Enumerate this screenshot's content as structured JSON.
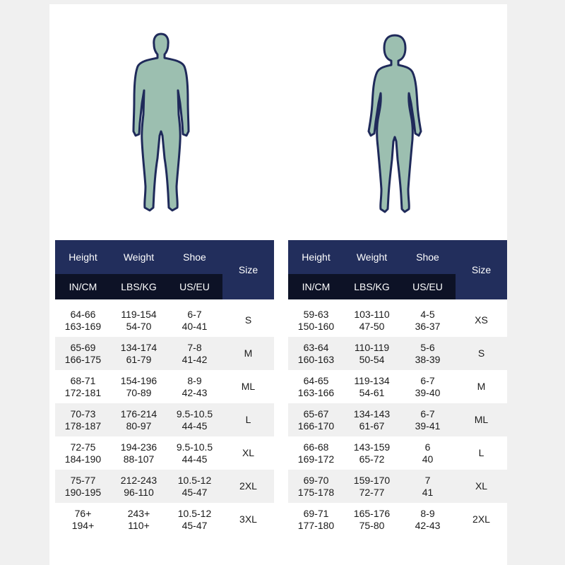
{
  "colors": {
    "header_navy": "#222e5c",
    "subheader_dark": "#0d1226",
    "figure_fill": "#9cbfb0",
    "figure_outline": "#1f2a5a",
    "row_alt": "#f0f0f0"
  },
  "headers": {
    "height": "Height",
    "weight": "Weight",
    "shoe": "Shoe",
    "size": "Size",
    "height_unit": "IN/CM",
    "weight_unit": "LBS/KG",
    "shoe_unit": "US/EU"
  },
  "men": {
    "figure": "male-body-silhouette",
    "rows": [
      {
        "height": [
          "64-66",
          "163-169"
        ],
        "weight": [
          "119-154",
          "54-70"
        ],
        "shoe": [
          "6-7",
          "40-41"
        ],
        "size": "S"
      },
      {
        "height": [
          "65-69",
          "166-175"
        ],
        "weight": [
          "134-174",
          "61-79"
        ],
        "shoe": [
          "7-8",
          "41-42"
        ],
        "size": "M"
      },
      {
        "height": [
          "68-71",
          "172-181"
        ],
        "weight": [
          "154-196",
          "70-89"
        ],
        "shoe": [
          "8-9",
          "42-43"
        ],
        "size": "ML"
      },
      {
        "height": [
          "70-73",
          "178-187"
        ],
        "weight": [
          "176-214",
          "80-97"
        ],
        "shoe": [
          "9.5-10.5",
          "44-45"
        ],
        "size": "L"
      },
      {
        "height": [
          "72-75",
          "184-190"
        ],
        "weight": [
          "194-236",
          "88-107"
        ],
        "shoe": [
          "9.5-10.5",
          "44-45"
        ],
        "size": "XL"
      },
      {
        "height": [
          "75-77",
          "190-195"
        ],
        "weight": [
          "212-243",
          "96-110"
        ],
        "shoe": [
          "10.5-12",
          "45-47"
        ],
        "size": "2XL"
      },
      {
        "height": [
          "76+",
          "194+"
        ],
        "weight": [
          "243+",
          "110+"
        ],
        "shoe": [
          "10.5-12",
          "45-47"
        ],
        "size": "3XL"
      }
    ]
  },
  "women": {
    "figure": "female-body-silhouette",
    "rows": [
      {
        "height": [
          "59-63",
          "150-160"
        ],
        "weight": [
          "103-110",
          "47-50"
        ],
        "shoe": [
          "4-5",
          "36-37"
        ],
        "size": "XS"
      },
      {
        "height": [
          "63-64",
          "160-163"
        ],
        "weight": [
          "110-119",
          "50-54"
        ],
        "shoe": [
          "5-6",
          "38-39"
        ],
        "size": "S"
      },
      {
        "height": [
          "64-65",
          "163-166"
        ],
        "weight": [
          "119-134",
          "54-61"
        ],
        "shoe": [
          "6-7",
          "39-40"
        ],
        "size": "M"
      },
      {
        "height": [
          "65-67",
          "166-170"
        ],
        "weight": [
          "134-143",
          "61-67"
        ],
        "shoe": [
          "6-7",
          "39-41"
        ],
        "size": "ML"
      },
      {
        "height": [
          "66-68",
          "169-172"
        ],
        "weight": [
          "143-159",
          "65-72"
        ],
        "shoe": [
          "6",
          "40"
        ],
        "size": "L"
      },
      {
        "height": [
          "69-70",
          "175-178"
        ],
        "weight": [
          "159-170",
          "72-77"
        ],
        "shoe": [
          "7",
          "41"
        ],
        "size": "XL"
      },
      {
        "height": [
          "69-71",
          "177-180"
        ],
        "weight": [
          "165-176",
          "75-80"
        ],
        "shoe": [
          "8-9",
          "42-43"
        ],
        "size": "2XL"
      }
    ]
  }
}
